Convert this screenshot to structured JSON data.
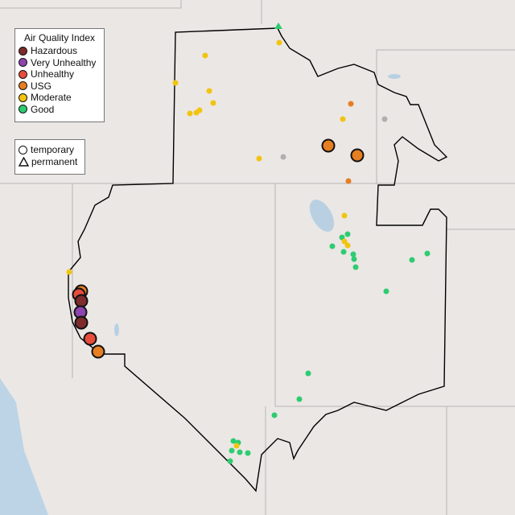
{
  "legend": {
    "title": "Air Quality Index",
    "categories": [
      {
        "label": "Hazardous",
        "color": "#7e2b2b"
      },
      {
        "label": "Very Unhealthy",
        "color": "#8e44ad"
      },
      {
        "label": "Unhealthy",
        "color": "#e74c3c"
      },
      {
        "label": "USG",
        "color": "#e67e22"
      },
      {
        "label": "Moderate",
        "color": "#f1c40f"
      },
      {
        "label": "Good",
        "color": "#2ecc71"
      }
    ],
    "types": [
      {
        "label": "temporary",
        "shape": "circle"
      },
      {
        "label": "permanent",
        "shape": "triangle"
      }
    ]
  }
}
